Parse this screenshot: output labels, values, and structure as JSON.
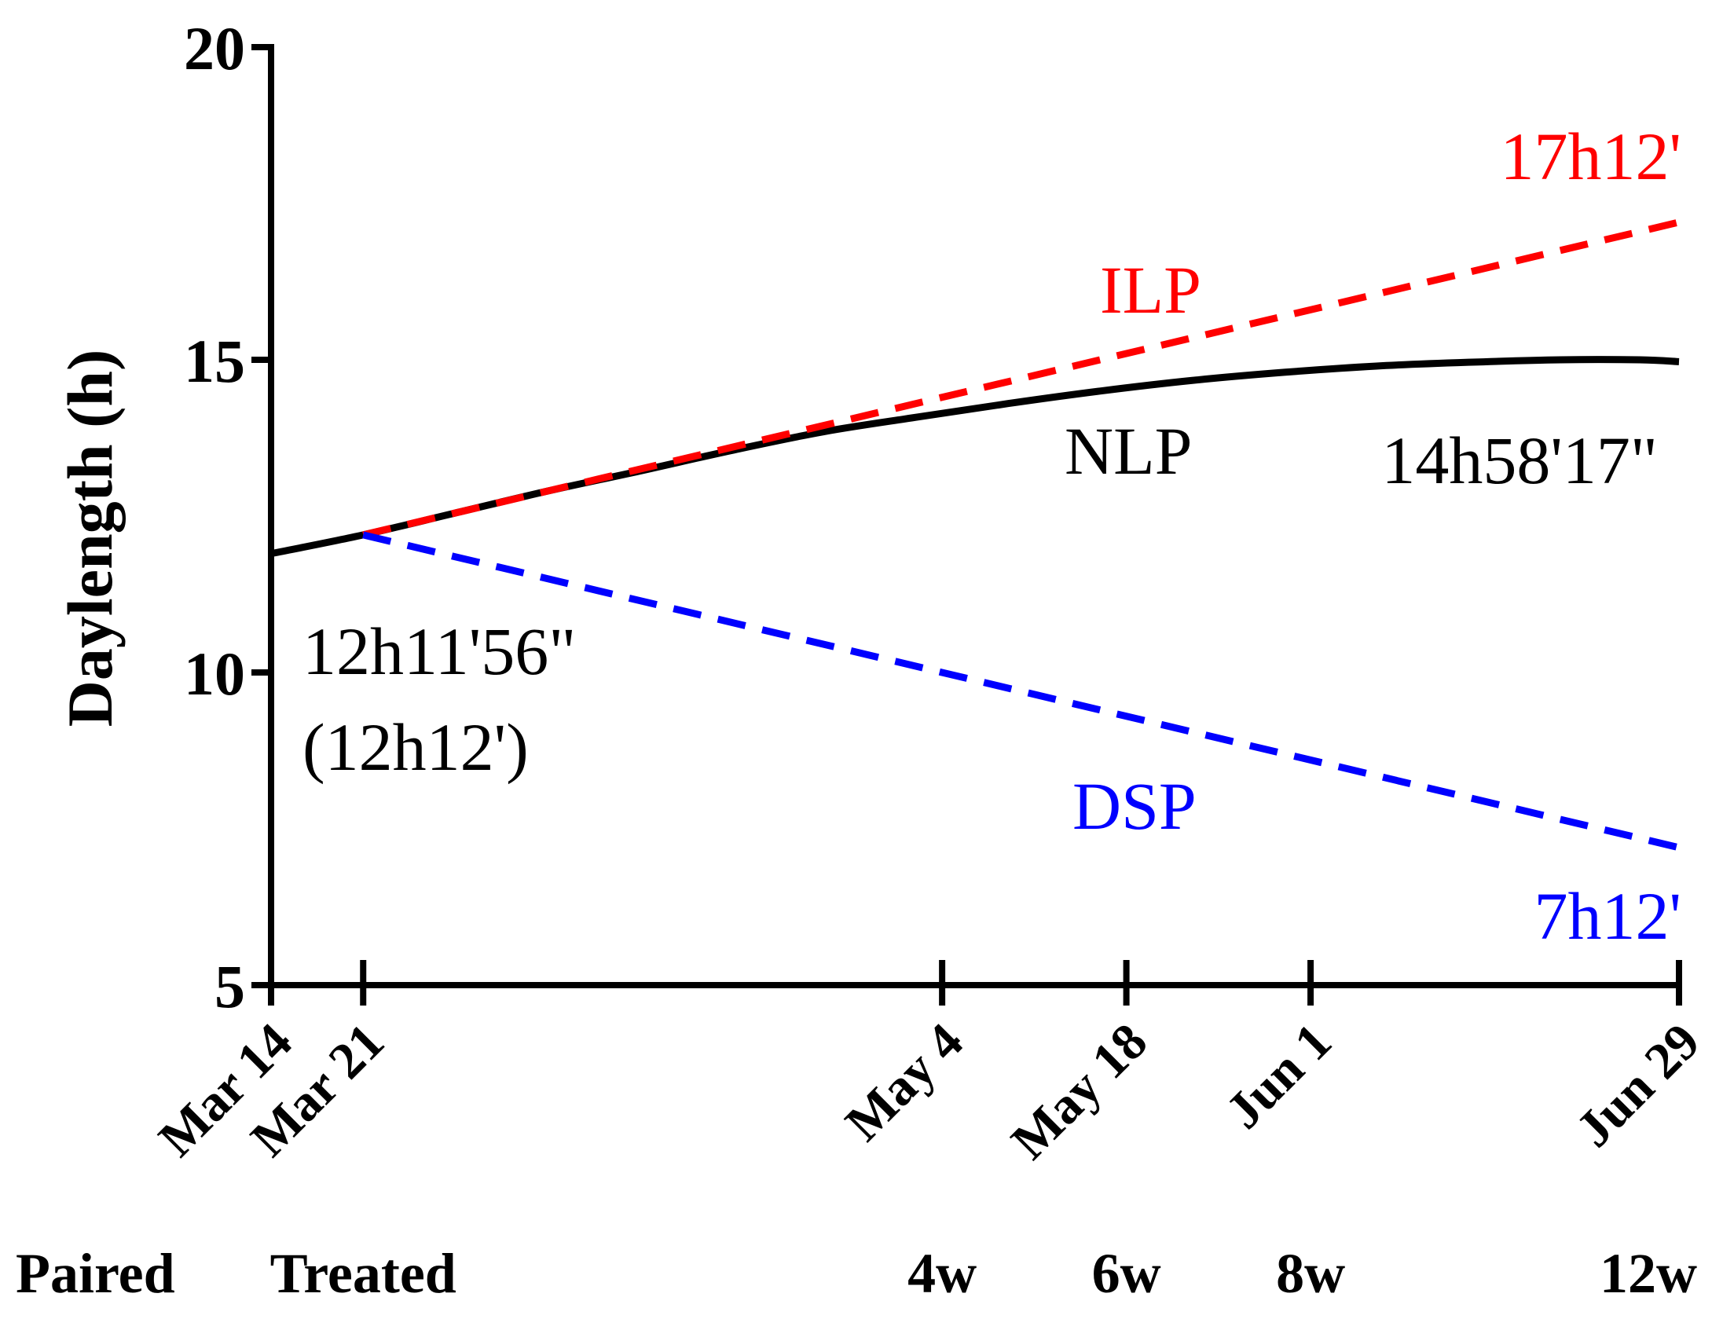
{
  "chart_data": {
    "type": "line",
    "title": "",
    "xlabel": "",
    "ylabel": "Daylength (h)",
    "ylim": [
      5,
      20
    ],
    "yticks": [
      "5",
      "10",
      "15",
      "20"
    ],
    "x_domain_days": [
      0,
      107
    ],
    "x_ticks": [
      {
        "day": 0,
        "label": "Mar 14"
      },
      {
        "day": 7,
        "label": "Mar 21"
      },
      {
        "day": 51,
        "label": "May 4"
      },
      {
        "day": 65,
        "label": "May 18"
      },
      {
        "day": 79,
        "label": "Jun 1"
      },
      {
        "day": 107,
        "label": "Jun 29"
      }
    ],
    "phase_labels": [
      {
        "day": 0,
        "label": "Paired"
      },
      {
        "day": 7,
        "label": "Treated"
      },
      {
        "day": 51,
        "label": "4w"
      },
      {
        "day": 65,
        "label": "6w"
      },
      {
        "day": 79,
        "label": "8w"
      },
      {
        "day": 107,
        "label": "12w"
      }
    ],
    "series": [
      {
        "name": "NLP",
        "color": "#000000",
        "style": "solid",
        "x": [
          0,
          7,
          14,
          21,
          28,
          35,
          42,
          49,
          56,
          63,
          70,
          77,
          84,
          91,
          98,
          104,
          107
        ],
        "y": [
          11.9,
          12.2,
          12.55,
          12.9,
          13.22,
          13.55,
          13.85,
          14.08,
          14.3,
          14.5,
          14.67,
          14.8,
          14.9,
          14.96,
          15.0,
          15.0,
          14.97
        ]
      },
      {
        "name": "ILP",
        "color": "#ff0000",
        "style": "dashed",
        "x": [
          7,
          107
        ],
        "y": [
          12.2,
          17.2
        ]
      },
      {
        "name": "DSP",
        "color": "#0000ff",
        "style": "dashed",
        "x": [
          7,
          107
        ],
        "y": [
          12.2,
          7.2
        ]
      }
    ],
    "annotations": {
      "ilp_label": "ILP",
      "nlp_label": "NLP",
      "dsp_label": "DSP",
      "ilp_end": "17h12'",
      "nlp_end": "14h58'17\"",
      "dsp_end": "7h12'",
      "start_line1": "12h11'56\"",
      "start_line2": "(12h12')"
    }
  }
}
